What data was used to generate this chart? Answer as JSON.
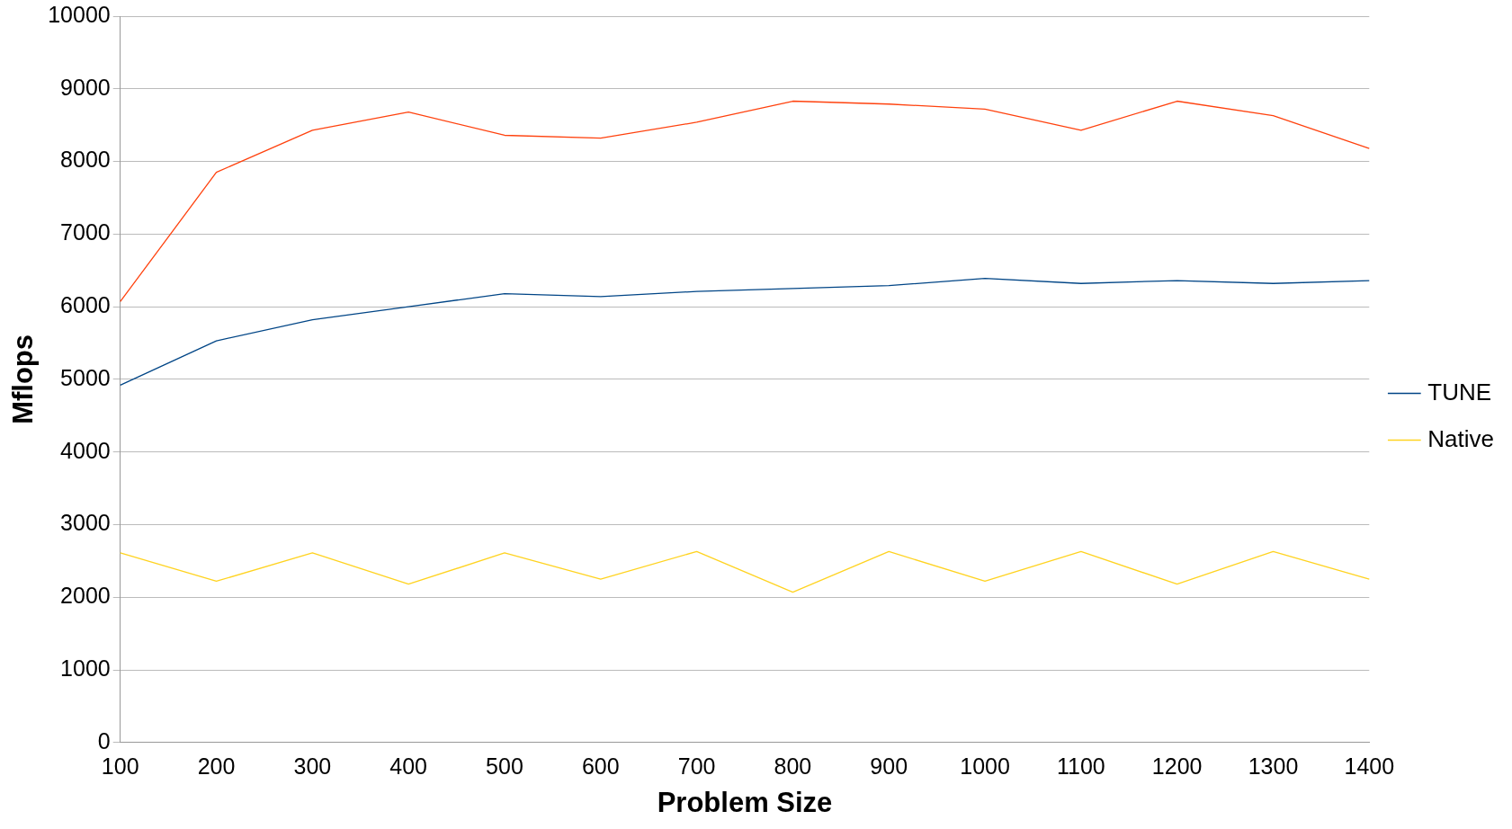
{
  "chart_data": {
    "type": "line",
    "xlabel": "Problem Size",
    "ylabel": "Mflops",
    "categories": [
      "100",
      "200",
      "300",
      "400",
      "500",
      "600",
      "700",
      "800",
      "900",
      "1000",
      "1100",
      "1200",
      "1300",
      "1400"
    ],
    "series": [
      {
        "name": "TUNE",
        "color": "#004586",
        "values": [
          4920,
          5530,
          5820,
          6000,
          6180,
          6140,
          6210,
          6250,
          6290,
          6390,
          6320,
          6360,
          6320,
          6360
        ]
      },
      {
        "color": "#ff420e",
        "values": [
          6070,
          7850,
          8430,
          8680,
          8360,
          8320,
          8540,
          8830,
          8790,
          8720,
          8430,
          8830,
          8630,
          8180
        ]
      },
      {
        "name": "Native",
        "color": "#ffd320",
        "values": [
          2610,
          2220,
          2610,
          2180,
          2610,
          2250,
          2630,
          2070,
          2630,
          2220,
          2630,
          2180,
          2630,
          2250
        ]
      }
    ],
    "ylim": [
      0,
      10000
    ],
    "yticks": [
      0,
      1000,
      2000,
      3000,
      4000,
      5000,
      6000,
      7000,
      8000,
      9000,
      10000
    ],
    "grid": "y",
    "legend": "right",
    "marker": "none",
    "line_style": "solid"
  }
}
